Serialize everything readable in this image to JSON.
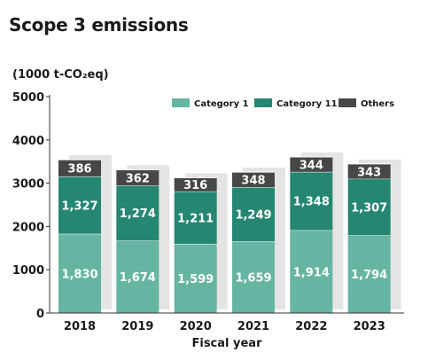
{
  "page": {
    "title": "Scope 3 emissions"
  },
  "chart_data": {
    "type": "bar",
    "stacked": true,
    "title": "Scope 3 emissions",
    "ylabel": "(1000 t-CO₂eq)",
    "xlabel": "Fiscal year",
    "ylim": [
      0,
      5000
    ],
    "yticks": [
      "0",
      "1000",
      "2000",
      "3000",
      "4000",
      "5000"
    ],
    "categories": [
      "2018",
      "2019",
      "2020",
      "2021",
      "2022",
      "2023"
    ],
    "series": [
      {
        "name": "Category 1",
        "color": "#66b5a2",
        "values": [
          1830,
          1674,
          1599,
          1659,
          1914,
          1794
        ],
        "labels": [
          "1,830",
          "1,674",
          "1,599",
          "1,659",
          "1,914",
          "1,794"
        ]
      },
      {
        "name": "Category 11",
        "color": "#258671",
        "values": [
          1327,
          1274,
          1211,
          1249,
          1348,
          1307
        ],
        "labels": [
          "1,327",
          "1,274",
          "1,211",
          "1,249",
          "1,348",
          "1,307"
        ]
      },
      {
        "name": "Others",
        "color": "#474747",
        "values": [
          386,
          362,
          316,
          348,
          344,
          343
        ],
        "labels": [
          "386",
          "362",
          "316",
          "348",
          "344",
          "343"
        ]
      }
    ],
    "legend_position": "top-right",
    "grid": false
  }
}
